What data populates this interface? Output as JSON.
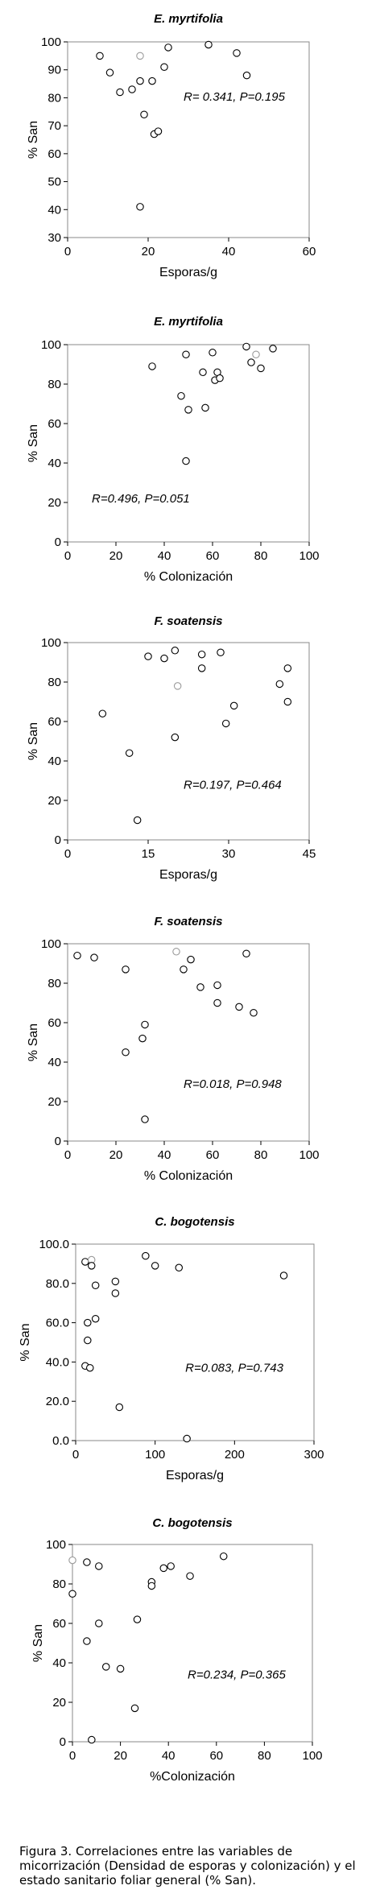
{
  "chart_data": [
    {
      "type": "scatter",
      "title": "E. myrtifolia",
      "xlabel": "Esporas/g",
      "ylabel": "% San",
      "xlim": [
        0,
        60
      ],
      "ylim": [
        30,
        100
      ],
      "xticks": [
        0,
        20,
        40,
        60
      ],
      "yticks": [
        30,
        40,
        50,
        60,
        70,
        80,
        90,
        100
      ],
      "annotation": "R= 0.341, P=0.195",
      "points": [
        {
          "x": 8,
          "y": 95
        },
        {
          "x": 10.5,
          "y": 89
        },
        {
          "x": 13,
          "y": 82
        },
        {
          "x": 16,
          "y": 83
        },
        {
          "x": 18,
          "y": 95
        },
        {
          "x": 18,
          "y": 86
        },
        {
          "x": 19,
          "y": 74
        },
        {
          "x": 21,
          "y": 86
        },
        {
          "x": 21.5,
          "y": 67
        },
        {
          "x": 22.5,
          "y": 68
        },
        {
          "x": 24,
          "y": 91
        },
        {
          "x": 25,
          "y": 98
        },
        {
          "x": 35,
          "y": 99
        },
        {
          "x": 42,
          "y": 96
        },
        {
          "x": 44.5,
          "y": 88
        },
        {
          "x": 18,
          "y": 41
        }
      ]
    },
    {
      "type": "scatter",
      "title": "E. myrtifolia",
      "xlabel": "% Colonización",
      "ylabel": "% San",
      "xlim": [
        0,
        100
      ],
      "ylim": [
        0,
        100
      ],
      "xticks": [
        0,
        20,
        40,
        60,
        80,
        100
      ],
      "yticks": [
        0,
        20,
        40,
        60,
        80,
        100
      ],
      "annotation": "R=0.496, P=0.051",
      "points": [
        {
          "x": 35,
          "y": 89
        },
        {
          "x": 47,
          "y": 74
        },
        {
          "x": 49,
          "y": 95
        },
        {
          "x": 50,
          "y": 67
        },
        {
          "x": 49,
          "y": 41
        },
        {
          "x": 56,
          "y": 86
        },
        {
          "x": 57,
          "y": 68
        },
        {
          "x": 60,
          "y": 96
        },
        {
          "x": 61,
          "y": 82
        },
        {
          "x": 62,
          "y": 86
        },
        {
          "x": 63,
          "y": 83
        },
        {
          "x": 74,
          "y": 99
        },
        {
          "x": 76,
          "y": 91
        },
        {
          "x": 78,
          "y": 95
        },
        {
          "x": 80,
          "y": 88
        },
        {
          "x": 85,
          "y": 98
        }
      ]
    },
    {
      "type": "scatter",
      "title": "F. soatensis",
      "xlabel": "Esporas/g",
      "ylabel": "% San",
      "xlim": [
        0,
        45
      ],
      "ylim": [
        0,
        100
      ],
      "xticks": [
        0,
        15,
        30,
        45
      ],
      "yticks": [
        0,
        20,
        40,
        60,
        80,
        100
      ],
      "annotation": "R=0.197, P=0.464",
      "points": [
        {
          "x": 6.5,
          "y": 64
        },
        {
          "x": 11.5,
          "y": 44
        },
        {
          "x": 13,
          "y": 10
        },
        {
          "x": 15,
          "y": 93
        },
        {
          "x": 18,
          "y": 92
        },
        {
          "x": 20,
          "y": 96
        },
        {
          "x": 20.5,
          "y": 78
        },
        {
          "x": 20,
          "y": 52
        },
        {
          "x": 25,
          "y": 94
        },
        {
          "x": 25,
          "y": 87
        },
        {
          "x": 28.5,
          "y": 95
        },
        {
          "x": 29.5,
          "y": 59
        },
        {
          "x": 31,
          "y": 68
        },
        {
          "x": 39.5,
          "y": 79
        },
        {
          "x": 41,
          "y": 87
        },
        {
          "x": 41,
          "y": 70
        }
      ]
    },
    {
      "type": "scatter",
      "title": "F. soatensis",
      "xlabel": "% Colonización",
      "ylabel": "% San",
      "xlim": [
        0,
        100
      ],
      "ylim": [
        0,
        100
      ],
      "xticks": [
        0,
        20,
        40,
        60,
        80,
        100
      ],
      "yticks": [
        0,
        20,
        40,
        60,
        80,
        100
      ],
      "annotation": "R=0.018, P=0.948",
      "points": [
        {
          "x": 4,
          "y": 94
        },
        {
          "x": 11,
          "y": 93
        },
        {
          "x": 24,
          "y": 87
        },
        {
          "x": 24,
          "y": 45
        },
        {
          "x": 31,
          "y": 52
        },
        {
          "x": 32,
          "y": 59
        },
        {
          "x": 32,
          "y": 11
        },
        {
          "x": 45,
          "y": 96
        },
        {
          "x": 48,
          "y": 87
        },
        {
          "x": 51,
          "y": 92
        },
        {
          "x": 55,
          "y": 78
        },
        {
          "x": 62,
          "y": 79
        },
        {
          "x": 62,
          "y": 70
        },
        {
          "x": 71,
          "y": 68
        },
        {
          "x": 74,
          "y": 95
        },
        {
          "x": 77,
          "y": 65
        }
      ]
    },
    {
      "type": "scatter",
      "title": "C. bogotensis",
      "xlabel": "Esporas/g",
      "ylabel": "% San",
      "xlim": [
        0,
        300
      ],
      "ylim": [
        0,
        100
      ],
      "xticks": [
        0,
        100,
        200,
        300
      ],
      "yticks": [
        0,
        20,
        40,
        60,
        80,
        100
      ],
      "xtick_labels": [
        "0",
        "100",
        "200",
        "300"
      ],
      "ytick_labels": [
        "0.0",
        "20.0",
        "40.0",
        "60.0",
        "80.0",
        "100.0"
      ],
      "annotation": "R=0.083, P=0.743",
      "points": [
        {
          "x": 12,
          "y": 91
        },
        {
          "x": 20,
          "y": 92
        },
        {
          "x": 20,
          "y": 89
        },
        {
          "x": 25,
          "y": 79
        },
        {
          "x": 15,
          "y": 60
        },
        {
          "x": 25,
          "y": 62
        },
        {
          "x": 15,
          "y": 51
        },
        {
          "x": 12,
          "y": 38
        },
        {
          "x": 18,
          "y": 37
        },
        {
          "x": 50,
          "y": 81
        },
        {
          "x": 50,
          "y": 75
        },
        {
          "x": 55,
          "y": 17
        },
        {
          "x": 88,
          "y": 94
        },
        {
          "x": 100,
          "y": 89
        },
        {
          "x": 130,
          "y": 88
        },
        {
          "x": 140,
          "y": 1
        },
        {
          "x": 262,
          "y": 84
        }
      ]
    },
    {
      "type": "scatter",
      "title": "C. bogotensis",
      "xlabel": "%Colonización",
      "ylabel": "% San",
      "xlim": [
        0,
        100
      ],
      "ylim": [
        0,
        100
      ],
      "xticks": [
        0,
        20,
        40,
        60,
        80,
        100
      ],
      "yticks": [
        0,
        20,
        40,
        60,
        80,
        100
      ],
      "annotation": "R=0.234, P=0.365",
      "points": [
        {
          "x": 0,
          "y": 92
        },
        {
          "x": 0,
          "y": 75
        },
        {
          "x": 6,
          "y": 91
        },
        {
          "x": 11,
          "y": 89
        },
        {
          "x": 6,
          "y": 51
        },
        {
          "x": 11,
          "y": 60
        },
        {
          "x": 14,
          "y": 38
        },
        {
          "x": 20,
          "y": 37
        },
        {
          "x": 8,
          "y": 1
        },
        {
          "x": 27,
          "y": 62
        },
        {
          "x": 26,
          "y": 17
        },
        {
          "x": 33,
          "y": 81
        },
        {
          "x": 33,
          "y": 79
        },
        {
          "x": 38,
          "y": 88
        },
        {
          "x": 41,
          "y": 89
        },
        {
          "x": 49,
          "y": 84
        },
        {
          "x": 63,
          "y": 94
        }
      ]
    }
  ],
  "caption": "Figura 3. Correlaciones entre las variables de micorrización (Densidad de esporas y colonización) y el estado sanitario foliar general (% San)."
}
